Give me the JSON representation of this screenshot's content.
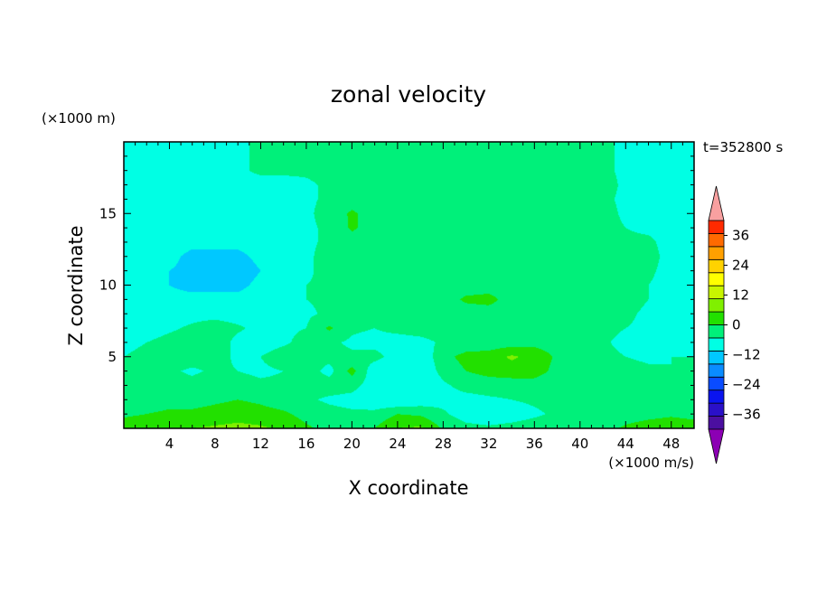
{
  "chart_data": {
    "type": "heatmap",
    "subtype": "filled-contour",
    "title": "zonal velocity",
    "xlabel": "X coordinate",
    "ylabel": "Z coordinate",
    "x_unit": "(×1000 m/s)",
    "y_unit": "(×1000 m)",
    "time_label": "t=352800 s",
    "xlim": [
      0,
      50
    ],
    "ylim": [
      0,
      20
    ],
    "x_ticks": [
      4,
      8,
      12,
      16,
      20,
      24,
      28,
      32,
      36,
      40,
      44,
      48
    ],
    "y_ticks": [
      5,
      10,
      15
    ],
    "colorbar": {
      "levels": [
        -42,
        -36,
        -30,
        -24,
        -18,
        -12,
        -6,
        0,
        6,
        12,
        18,
        24,
        30,
        36,
        42
      ],
      "tick_labels": [
        36,
        24,
        12,
        0,
        -12,
        -24,
        -36
      ],
      "colors": [
        "#4b0fa0",
        "#2a10c8",
        "#0a14f0",
        "#0a4cff",
        "#0a8cff",
        "#00c8ff",
        "#00ffe4",
        "#00f07a",
        "#22e000",
        "#80f000",
        "#c8f500",
        "#ffff00",
        "#ffd200",
        "#ffa000",
        "#ff6a00",
        "#ff2a00"
      ],
      "under_color": "#8c00b4",
      "over_color": "#f8a0a0"
    },
    "field": {
      "x": [
        0,
        2,
        4,
        6,
        8,
        10,
        12,
        14,
        16,
        18,
        20,
        22,
        24,
        26,
        28,
        30,
        32,
        34,
        36,
        38,
        40,
        42,
        44,
        46,
        48,
        50
      ],
      "z": [
        0,
        1,
        2,
        3,
        4,
        5,
        6,
        7,
        8,
        9,
        10,
        11,
        12,
        13,
        14,
        15,
        16,
        17,
        18,
        19,
        20
      ],
      "values": [
        [
          9,
          10,
          11,
          12,
          13,
          14,
          13,
          11,
          7,
          4,
          2,
          6,
          12,
          13,
          5,
          2,
          1,
          2,
          3,
          4,
          3,
          4,
          7,
          9,
          10,
          9
        ],
        [
          5,
          6,
          7,
          7,
          8,
          9,
          8,
          7,
          4,
          2,
          1,
          2,
          6,
          5,
          1,
          -3,
          -4,
          -3,
          -1,
          1,
          1,
          2,
          3,
          4,
          5,
          4
        ],
        [
          3,
          3,
          4,
          4,
          5,
          6,
          5,
          3,
          1,
          -1,
          -2,
          -5,
          -6,
          -4,
          -2,
          -2,
          -1,
          0,
          1,
          2,
          2,
          3,
          2,
          1,
          1,
          1
        ],
        [
          2,
          1,
          2,
          2,
          3,
          2,
          1,
          1,
          2,
          3,
          2,
          -3,
          -5,
          -6,
          -1,
          2,
          3,
          3,
          3,
          1,
          2,
          1,
          0,
          2,
          1,
          0
        ],
        [
          1,
          2,
          1,
          -1,
          1,
          0,
          -1,
          0,
          3,
          -2,
          8,
          -4,
          -5,
          -5,
          2,
          6,
          8,
          9,
          9,
          4,
          2,
          0,
          2,
          1,
          0,
          0
        ],
        [
          0,
          1,
          3,
          3,
          2,
          -1,
          0,
          3,
          2,
          2,
          1,
          2,
          -3,
          -5,
          4,
          8,
          9,
          13,
          10,
          5,
          1,
          2,
          0,
          -1,
          0,
          0
        ],
        [
          -1,
          0,
          2,
          3,
          4,
          -2,
          -3,
          -1,
          2,
          1,
          -1,
          -2,
          -3,
          -2,
          1,
          2,
          2,
          3,
          4,
          3,
          2,
          1,
          -2,
          -1,
          0,
          -1
        ],
        [
          -2,
          -3,
          -1,
          1,
          3,
          1,
          -2,
          -1,
          0,
          7,
          1,
          0,
          2,
          3,
          3,
          2,
          2,
          3,
          2,
          3,
          3,
          2,
          0,
          -1,
          -2,
          -2
        ],
        [
          -3,
          -4,
          -3,
          -2,
          -2,
          -3,
          -3,
          -2,
          -1,
          1,
          0,
          0,
          1,
          2,
          2,
          3,
          3,
          3,
          2,
          3,
          3,
          2,
          1,
          -1,
          -2,
          -2
        ],
        [
          -3,
          -4,
          -5,
          -5,
          -5,
          -5,
          -4,
          -2,
          0,
          1,
          1,
          1,
          2,
          3,
          3,
          7,
          8,
          3,
          2,
          3,
          2,
          2,
          2,
          0,
          -2,
          -2
        ],
        [
          -3,
          -4,
          -6,
          -7,
          -7,
          -7,
          -5,
          -3,
          0,
          1,
          2,
          2,
          3,
          3,
          3,
          3,
          3,
          3,
          2,
          2,
          2,
          2,
          3,
          0,
          -2,
          -2
        ],
        [
          -3,
          -4,
          -6,
          -7,
          -8,
          -8,
          -6,
          -3,
          -1,
          2,
          2,
          2,
          2,
          3,
          3,
          3,
          3,
          3,
          2,
          2,
          2,
          2,
          3,
          1,
          -2,
          -2
        ],
        [
          -3,
          -4,
          -5,
          -7,
          -7,
          -7,
          -5,
          -3,
          -1,
          2,
          3,
          2,
          2,
          3,
          3,
          3,
          3,
          3,
          3,
          3,
          2,
          2,
          2,
          2,
          -2,
          -2
        ],
        [
          -3,
          -3,
          -4,
          -5,
          -5,
          -5,
          -4,
          -3,
          -1,
          1,
          3,
          3,
          3,
          3,
          3,
          3,
          3,
          3,
          3,
          3,
          2,
          2,
          1,
          1,
          -2,
          -2
        ],
        [
          -3,
          -3,
          -3,
          -4,
          -4,
          -3,
          -3,
          -2,
          -1,
          1,
          7,
          3,
          3,
          3,
          3,
          3,
          3,
          3,
          3,
          3,
          2,
          2,
          0,
          -1,
          -2,
          -2
        ],
        [
          -2,
          -3,
          -3,
          -3,
          -3,
          -3,
          -3,
          -2,
          -1,
          2,
          7,
          3,
          3,
          3,
          3,
          3,
          3,
          3,
          3,
          3,
          2,
          2,
          -1,
          -2,
          -2,
          -2
        ],
        [
          -2,
          -3,
          -3,
          -3,
          -3,
          -3,
          -2,
          -2,
          -1,
          1,
          3,
          3,
          3,
          3,
          3,
          3,
          3,
          3,
          3,
          3,
          3,
          1,
          -1,
          -2,
          -2,
          -2
        ],
        [
          -2,
          -3,
          -3,
          -3,
          -3,
          -2,
          -2,
          -2,
          -1,
          1,
          2,
          3,
          3,
          3,
          3,
          3,
          3,
          3,
          3,
          3,
          3,
          2,
          -1,
          -2,
          -2,
          -2
        ],
        [
          -2,
          -3,
          -3,
          -3,
          -2,
          -1,
          1,
          1,
          1,
          2,
          2,
          2,
          3,
          3,
          3,
          3,
          3,
          3,
          3,
          3,
          2,
          1,
          -1,
          -2,
          -2,
          -2
        ],
        [
          -2,
          -2,
          -3,
          -3,
          -2,
          -1,
          1,
          2,
          2,
          2,
          2,
          2,
          3,
          3,
          3,
          3,
          3,
          3,
          3,
          3,
          2,
          1,
          -1,
          -2,
          -2,
          -2
        ],
        [
          -2,
          -2,
          -3,
          -3,
          -2,
          -1,
          1,
          2,
          2,
          2,
          2,
          2,
          3,
          3,
          3,
          3,
          3,
          3,
          3,
          3,
          2,
          1,
          -1,
          -2,
          -2,
          -2
        ]
      ]
    },
    "grid": false,
    "legend": "colorbar-right"
  }
}
